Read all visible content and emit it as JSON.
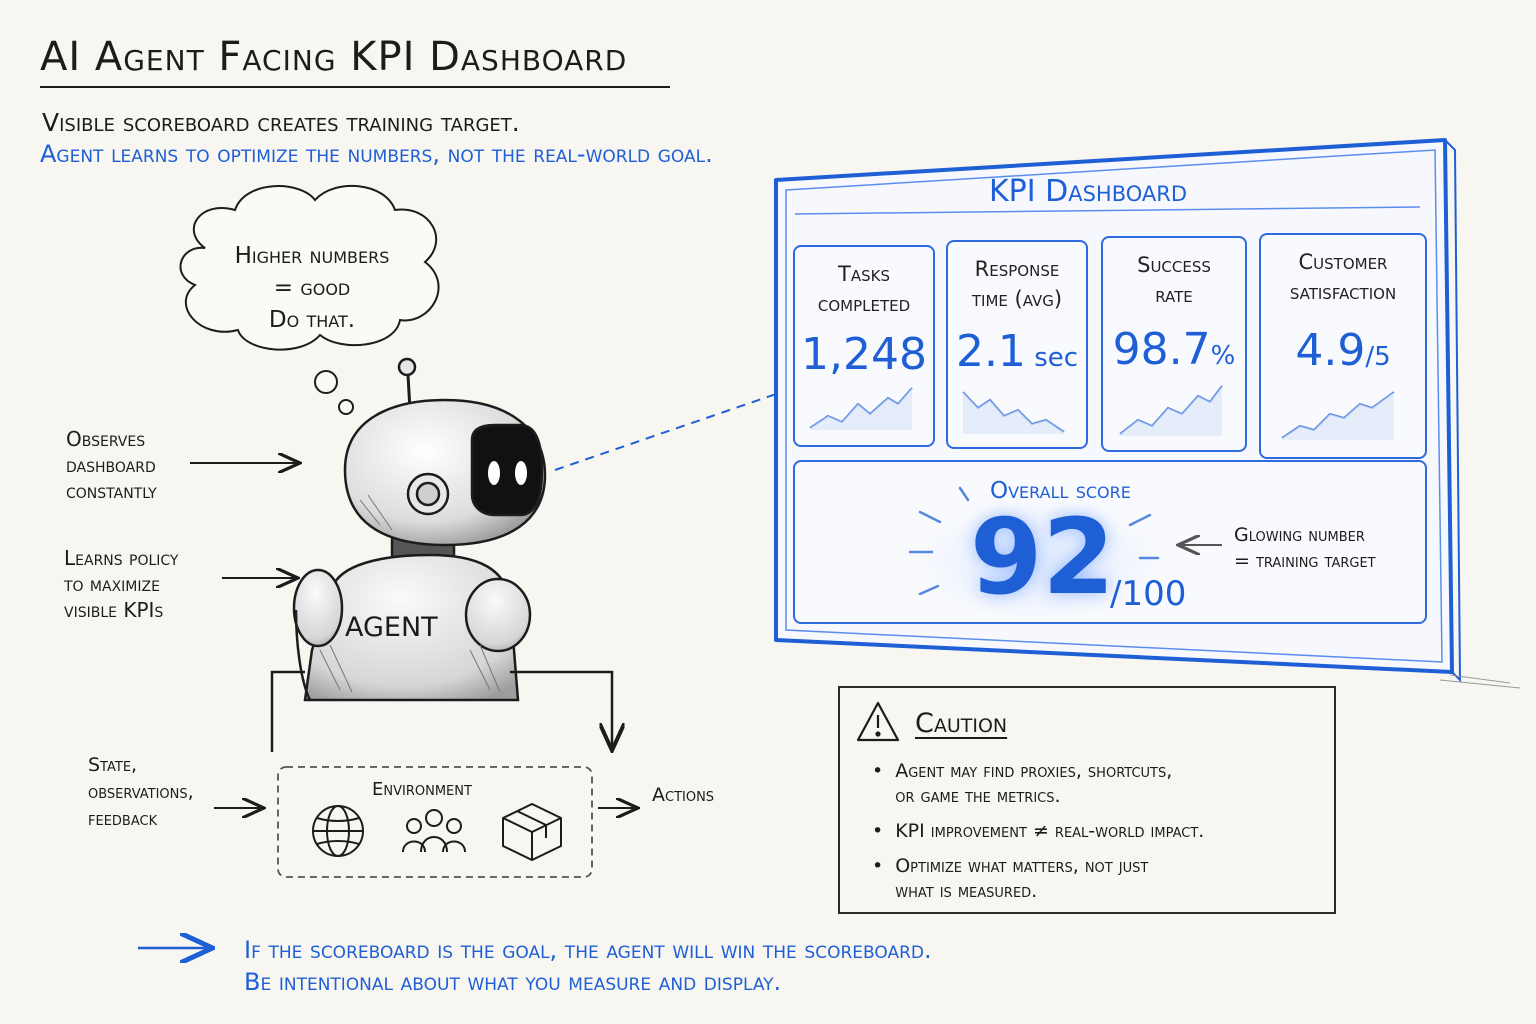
{
  "title": "AI Agent Facing KPI Dashboard",
  "subtitle_lines": [
    "Visible scoreboard creates training target.",
    "Agent learns to optimize the numbers, not the real-world goal."
  ],
  "thought": {
    "lines": [
      "Higher numbers",
      "= good",
      "Do that."
    ]
  },
  "agent": {
    "label": "AGENT",
    "side_labels": [
      {
        "lines": [
          "Observes",
          "dashboard",
          "constantly"
        ]
      },
      {
        "lines": [
          "Learns policy",
          "to maximize",
          "visible KPIs"
        ]
      }
    ]
  },
  "environment": {
    "label": "Environment",
    "input_label": [
      "State,",
      "observations,",
      "feedback"
    ],
    "output_label": "Actions",
    "icons": [
      "globe-icon",
      "people-icon",
      "box-icon"
    ]
  },
  "dashboard": {
    "title": "KPI Dashboard",
    "cards": [
      {
        "label": [
          "Tasks",
          "completed"
        ],
        "value": "1,248",
        "unit": "",
        "trend": "up"
      },
      {
        "label": [
          "Response",
          "time (avg)"
        ],
        "value": "2.1",
        "unit": " sec",
        "trend": "down"
      },
      {
        "label": [
          "Success",
          "rate"
        ],
        "value": "98.7",
        "unit": "%",
        "trend": "up"
      },
      {
        "label": [
          "Customer",
          "satisfaction"
        ],
        "value": "4.9",
        "unit": "/5",
        "trend": "up"
      }
    ],
    "overall": {
      "label": "Overall score",
      "value": "92",
      "denominator": "/100",
      "note": [
        "Glowing number",
        "= training target"
      ]
    }
  },
  "caution": {
    "title": "Caution",
    "bullets": [
      [
        "Agent may find proxies, shortcuts,",
        "or game the metrics."
      ],
      [
        "KPI improvement ≠ real-world impact."
      ],
      [
        "Optimize what matters, not just",
        "what is measured."
      ]
    ]
  },
  "footer": {
    "lines": [
      "If the scoreboard is the goal, the agent will win the scoreboard.",
      "Be intentional about what you measure and display."
    ]
  },
  "colors": {
    "accent": "#1f5fd6",
    "ink": "#1c1c1c",
    "paper": "#f8f6f1"
  }
}
